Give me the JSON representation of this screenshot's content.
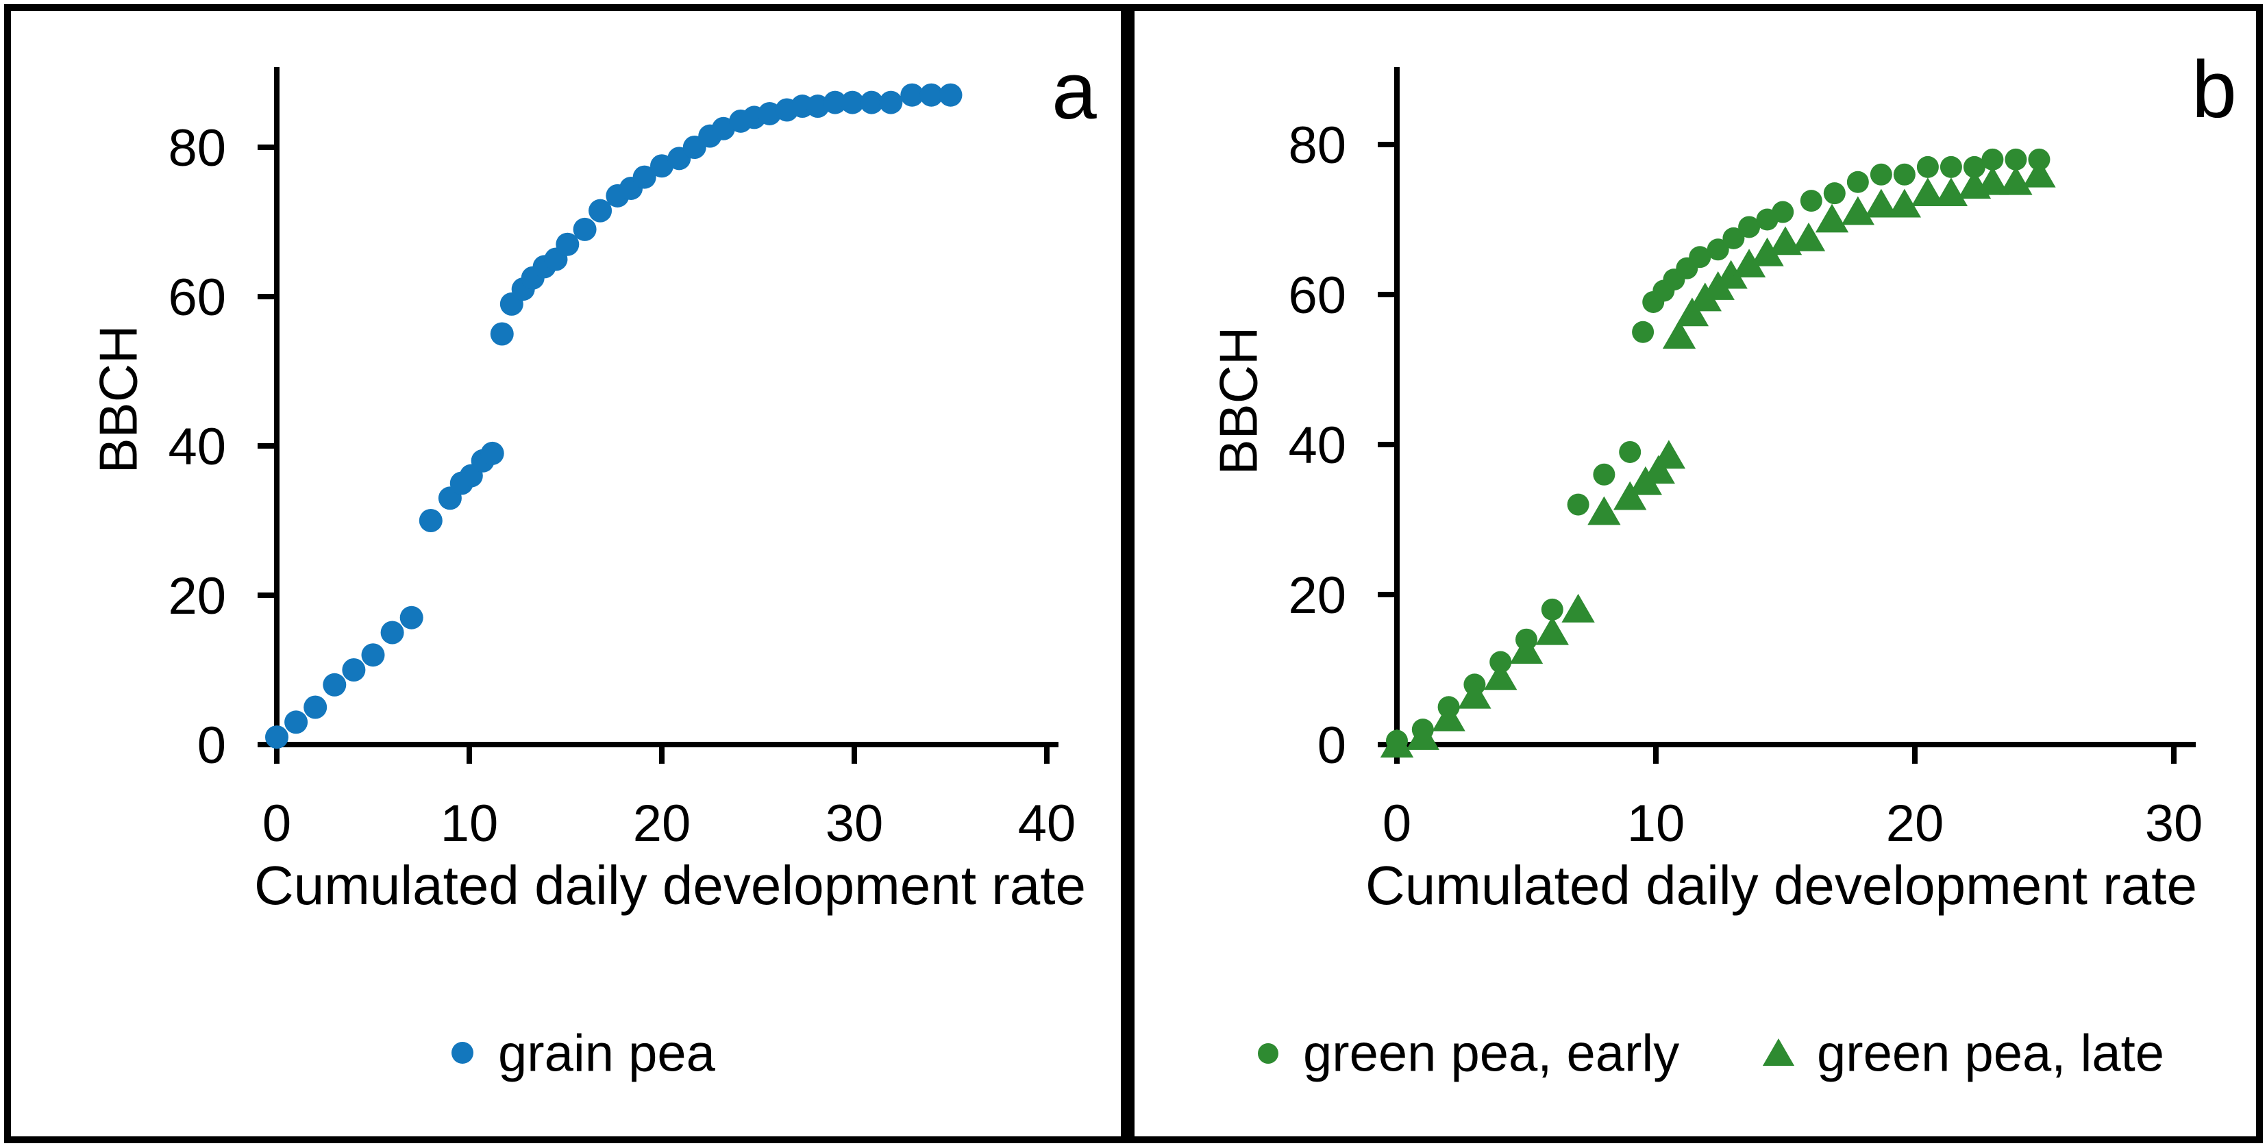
{
  "chart_data": [
    {
      "type": "scatter",
      "panel_label": "a",
      "title": "",
      "xlabel": "Cumulated daily development rate",
      "ylabel": "BBCH",
      "xlim": [
        0,
        40
      ],
      "ylim": [
        0,
        90
      ],
      "xticks": [
        0,
        10,
        20,
        30,
        40
      ],
      "yticks": [
        0,
        20,
        40,
        60,
        80
      ],
      "grid": false,
      "legend_position": "bottom",
      "series": [
        {
          "name": "grain pea",
          "marker": "circle",
          "color": "#1377BD",
          "points": [
            [
              0,
              1
            ],
            [
              1,
              3
            ],
            [
              2,
              5
            ],
            [
              3,
              8
            ],
            [
              4,
              10
            ],
            [
              5,
              12
            ],
            [
              6,
              15
            ],
            [
              7,
              17
            ],
            [
              8,
              30
            ],
            [
              9,
              33
            ],
            [
              9.6,
              35
            ],
            [
              10.1,
              36
            ],
            [
              10.7,
              38
            ],
            [
              11.2,
              39
            ],
            [
              11.7,
              55
            ],
            [
              12.2,
              59
            ],
            [
              12.8,
              61
            ],
            [
              13.3,
              62.5
            ],
            [
              13.9,
              64
            ],
            [
              14.5,
              65
            ],
            [
              15.1,
              67
            ],
            [
              16,
              69
            ],
            [
              16.8,
              71.5
            ],
            [
              17.7,
              73.5
            ],
            [
              18.4,
              74.5
            ],
            [
              19.1,
              76
            ],
            [
              20,
              77.5
            ],
            [
              20.9,
              78.5
            ],
            [
              21.7,
              80
            ],
            [
              22.5,
              81.5
            ],
            [
              23.2,
              82.5
            ],
            [
              24.1,
              83.5
            ],
            [
              24.8,
              84
            ],
            [
              25.6,
              84.5
            ],
            [
              26.5,
              85
            ],
            [
              27.3,
              85.5
            ],
            [
              28.1,
              85.5
            ],
            [
              29,
              86
            ],
            [
              29.9,
              86
            ],
            [
              30.9,
              86
            ],
            [
              31.9,
              86
            ],
            [
              33,
              87
            ],
            [
              34,
              87
            ],
            [
              35,
              87
            ]
          ]
        }
      ]
    },
    {
      "type": "scatter",
      "panel_label": "b",
      "title": "",
      "xlabel": "Cumulated daily development rate",
      "ylabel": "BBCH",
      "xlim": [
        0,
        30
      ],
      "ylim": [
        0,
        90
      ],
      "xticks": [
        0,
        10,
        20,
        30
      ],
      "yticks": [
        0,
        20,
        40,
        60,
        80
      ],
      "grid": false,
      "legend_position": "bottom",
      "series": [
        {
          "name": "green pea, early",
          "marker": "circle",
          "color": "#2E8B31",
          "points": [
            [
              0,
              0.5
            ],
            [
              1,
              2
            ],
            [
              2,
              5
            ],
            [
              3,
              8
            ],
            [
              4,
              11
            ],
            [
              5,
              14
            ],
            [
              6,
              18
            ],
            [
              7,
              32
            ],
            [
              8,
              36
            ],
            [
              9,
              39
            ],
            [
              9.5,
              55
            ],
            [
              9.9,
              59
            ],
            [
              10.3,
              60.5
            ],
            [
              10.7,
              62
            ],
            [
              11.2,
              63.5
            ],
            [
              11.7,
              65
            ],
            [
              12.4,
              66
            ],
            [
              13,
              67.5
            ],
            [
              13.6,
              69
            ],
            [
              14.3,
              70
            ],
            [
              14.9,
              71
            ],
            [
              16,
              72.5
            ],
            [
              16.9,
              73.5
            ],
            [
              17.8,
              75
            ],
            [
              18.7,
              76
            ],
            [
              19.6,
              76
            ],
            [
              20.5,
              77
            ],
            [
              21.4,
              77
            ],
            [
              22.3,
              77
            ],
            [
              23,
              78
            ],
            [
              23.9,
              78
            ],
            [
              24.8,
              78
            ]
          ]
        },
        {
          "name": "green pea, late",
          "marker": "triangle",
          "color": "#2E8B31",
          "points": [
            [
              0,
              0
            ],
            [
              1,
              1
            ],
            [
              2,
              3.5
            ],
            [
              3,
              6.5
            ],
            [
              4,
              9
            ],
            [
              5,
              12.5
            ],
            [
              6,
              15
            ],
            [
              7,
              18
            ],
            [
              8,
              31
            ],
            [
              9,
              33
            ],
            [
              9.6,
              35
            ],
            [
              10.1,
              36.5
            ],
            [
              10.5,
              38.5
            ],
            [
              10.9,
              54.5
            ],
            [
              11.4,
              57.5
            ],
            [
              11.9,
              59.5
            ],
            [
              12.4,
              61
            ],
            [
              12.9,
              62.5
            ],
            [
              13.6,
              64
            ],
            [
              14.3,
              65.5
            ],
            [
              15,
              67
            ],
            [
              15.9,
              67.5
            ],
            [
              16.8,
              70
            ],
            [
              17.8,
              71
            ],
            [
              18.7,
              72
            ],
            [
              19.6,
              72
            ],
            [
              20.5,
              73.5
            ],
            [
              21.4,
              73.5
            ],
            [
              22.3,
              74.5
            ],
            [
              23,
              75
            ],
            [
              23.9,
              75
            ],
            [
              24.8,
              76
            ]
          ]
        }
      ]
    }
  ],
  "colors": {
    "grain_pea": "#1377BD",
    "green_pea": "#2E8B31",
    "axis": "#000000"
  }
}
